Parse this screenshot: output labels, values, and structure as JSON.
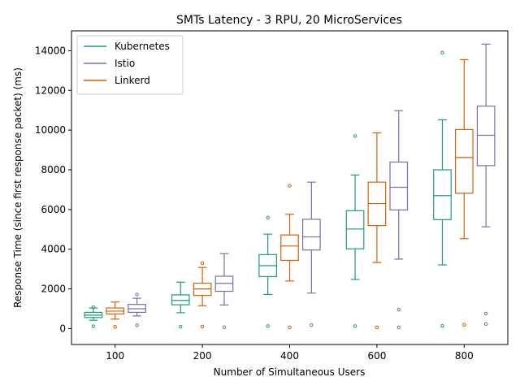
{
  "chart_data": {
    "type": "box",
    "title": "SMTs Latency - 3 RPU, 20 MicroServices",
    "xlabel": "Number of Simultaneous Users",
    "ylabel": "Response Time (since first response packet) (ms)",
    "categories": [
      "100",
      "200",
      "400",
      "600",
      "800"
    ],
    "ylim": [
      -800,
      15000
    ],
    "yticks": [
      0,
      2000,
      4000,
      6000,
      8000,
      10000,
      12000,
      14000
    ],
    "legend_position": "top-left",
    "series": [
      {
        "name": "Kubernetes",
        "color": "#1b9e77",
        "boxes": [
          {
            "category": "100",
            "whislo": 420,
            "q1": 560,
            "med": 680,
            "q3": 820,
            "whishi": 1040,
            "fliers": [
              120,
              1080
            ]
          },
          {
            "category": "200",
            "whislo": 800,
            "q1": 1200,
            "med": 1420,
            "q3": 1700,
            "whishi": 2340,
            "fliers": [
              100
            ]
          },
          {
            "category": "400",
            "whislo": 1720,
            "q1": 2620,
            "med": 3170,
            "q3": 3730,
            "whishi": 4760,
            "fliers": [
              130,
              5600
            ]
          },
          {
            "category": "600",
            "whislo": 2480,
            "q1": 4020,
            "med": 5020,
            "q3": 5940,
            "whishi": 7740,
            "fliers": [
              130,
              9700
            ]
          },
          {
            "category": "800",
            "whislo": 3210,
            "q1": 5490,
            "med": 6700,
            "q3": 8000,
            "whishi": 10520,
            "fliers": [
              140,
              13900
            ]
          }
        ]
      },
      {
        "name": "Istio",
        "color": "#7570b3",
        "boxes": [
          {
            "category": "100",
            "whislo": 640,
            "q1": 820,
            "med": 1000,
            "q3": 1220,
            "whishi": 1530,
            "fliers": [
              170,
              1720
            ]
          },
          {
            "category": "200",
            "whislo": 1190,
            "q1": 1880,
            "med": 2280,
            "q3": 2640,
            "whishi": 3780,
            "fliers": [
              70
            ]
          },
          {
            "category": "400",
            "whislo": 1790,
            "q1": 3960,
            "med": 4620,
            "q3": 5510,
            "whishi": 7380,
            "fliers": [
              180
            ]
          },
          {
            "category": "600",
            "whislo": 3500,
            "q1": 5980,
            "med": 7120,
            "q3": 8390,
            "whishi": 10980,
            "fliers": [
              60,
              960
            ]
          },
          {
            "category": "800",
            "whislo": 5130,
            "q1": 8210,
            "med": 9740,
            "q3": 11210,
            "whishi": 14330,
            "fliers": [
              230,
              760
            ]
          }
        ]
      },
      {
        "name": "Linkerd",
        "color": "#d95f02",
        "boxes": [
          {
            "category": "100",
            "whislo": 480,
            "q1": 740,
            "med": 880,
            "q3": 1040,
            "whishi": 1340,
            "fliers": [
              90
            ]
          },
          {
            "category": "200",
            "whislo": 1150,
            "q1": 1670,
            "med": 2000,
            "q3": 2290,
            "whishi": 3080,
            "fliers": [
              110,
              3300
            ]
          },
          {
            "category": "400",
            "whislo": 2400,
            "q1": 3440,
            "med": 4160,
            "q3": 4720,
            "whishi": 5760,
            "fliers": [
              60,
              7200
            ]
          },
          {
            "category": "600",
            "whislo": 3330,
            "q1": 5190,
            "med": 6300,
            "q3": 7380,
            "whishi": 9860,
            "fliers": [
              60
            ]
          },
          {
            "category": "800",
            "whislo": 4530,
            "q1": 6820,
            "med": 8620,
            "q3": 10030,
            "whishi": 13550,
            "fliers": [
              190
            ]
          }
        ]
      }
    ]
  }
}
